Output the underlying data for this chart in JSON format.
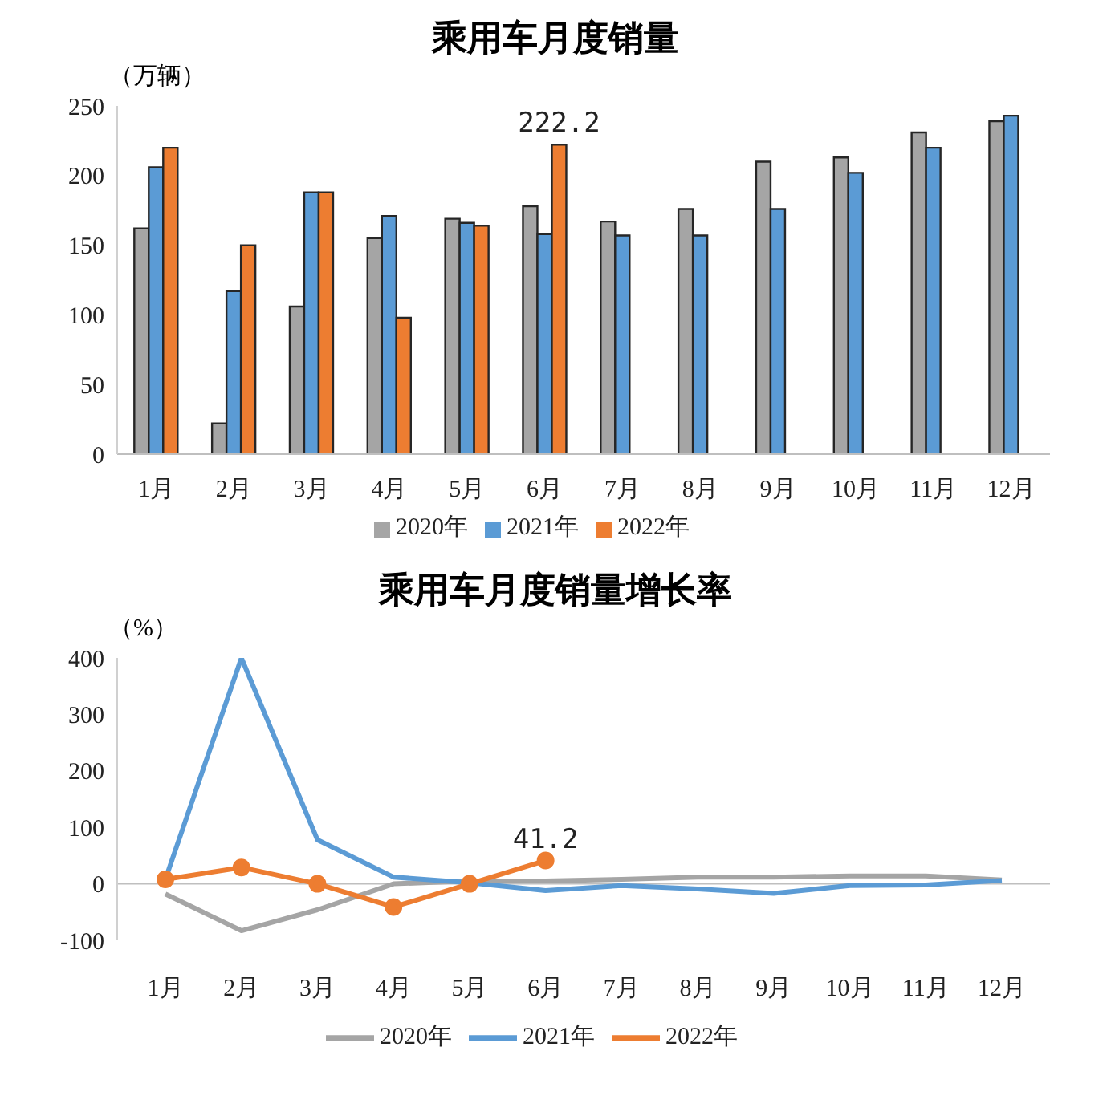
{
  "chart_data": [
    {
      "type": "bar",
      "title": "乘用车月度销量",
      "ylabel": "（万辆）",
      "categories": [
        "1月",
        "2月",
        "3月",
        "4月",
        "5月",
        "6月",
        "7月",
        "8月",
        "9月",
        "10月",
        "11月",
        "12月"
      ],
      "ylim": [
        0,
        250
      ],
      "yticks": [
        0,
        50,
        100,
        150,
        200,
        250
      ],
      "legend": "bottom",
      "series": [
        {
          "name": "2020年",
          "color": "#a5a5a5",
          "values": [
            162,
            22,
            106,
            155,
            169,
            178,
            167,
            176,
            210,
            213,
            231,
            239
          ]
        },
        {
          "name": "2021年",
          "color": "#5b9bd5",
          "values": [
            206,
            117,
            188,
            171,
            166,
            158,
            157,
            157,
            176,
            202,
            220,
            243
          ]
        },
        {
          "name": "2022年",
          "color": "#ed7d31",
          "values": [
            220,
            150,
            188,
            98,
            164,
            222.2,
            null,
            null,
            null,
            null,
            null,
            null
          ],
          "value_labels": [
            null,
            null,
            null,
            null,
            null,
            "222.2",
            null,
            null,
            null,
            null,
            null,
            null
          ]
        }
      ]
    },
    {
      "type": "line",
      "title": "乘用车月度销量增长率",
      "ylabel": "（%）",
      "categories": [
        "1月",
        "2月",
        "3月",
        "4月",
        "5月",
        "6月",
        "7月",
        "8月",
        "9月",
        "10月",
        "11月",
        "12月"
      ],
      "ylim": [
        -100,
        400
      ],
      "yticks": [
        -100,
        0,
        100,
        200,
        300,
        400
      ],
      "legend": "bottom",
      "ref_lines": [
        {
          "axis": "y",
          "value": 0,
          "color": "#bfbfbf"
        }
      ],
      "series": [
        {
          "name": "2020年",
          "color": "#a5a5a5",
          "marker": "none",
          "values": [
            -18,
            -83,
            -46,
            0,
            5,
            5,
            8,
            12,
            12,
            14,
            14,
            7
          ]
        },
        {
          "name": "2021年",
          "color": "#5b9bd5",
          "marker": "none",
          "values": [
            8,
            400,
            78,
            12,
            2,
            -12,
            -3,
            -9,
            -17,
            -3,
            -2,
            6
          ]
        },
        {
          "name": "2022年",
          "color": "#ed7d31",
          "marker": "circle",
          "values": [
            8,
            29,
            0,
            -41,
            0,
            41.2,
            null,
            null,
            null,
            null,
            null,
            null
          ],
          "value_labels": [
            null,
            null,
            null,
            null,
            null,
            "41.2",
            null,
            null,
            null,
            null,
            null,
            null
          ]
        }
      ]
    }
  ]
}
